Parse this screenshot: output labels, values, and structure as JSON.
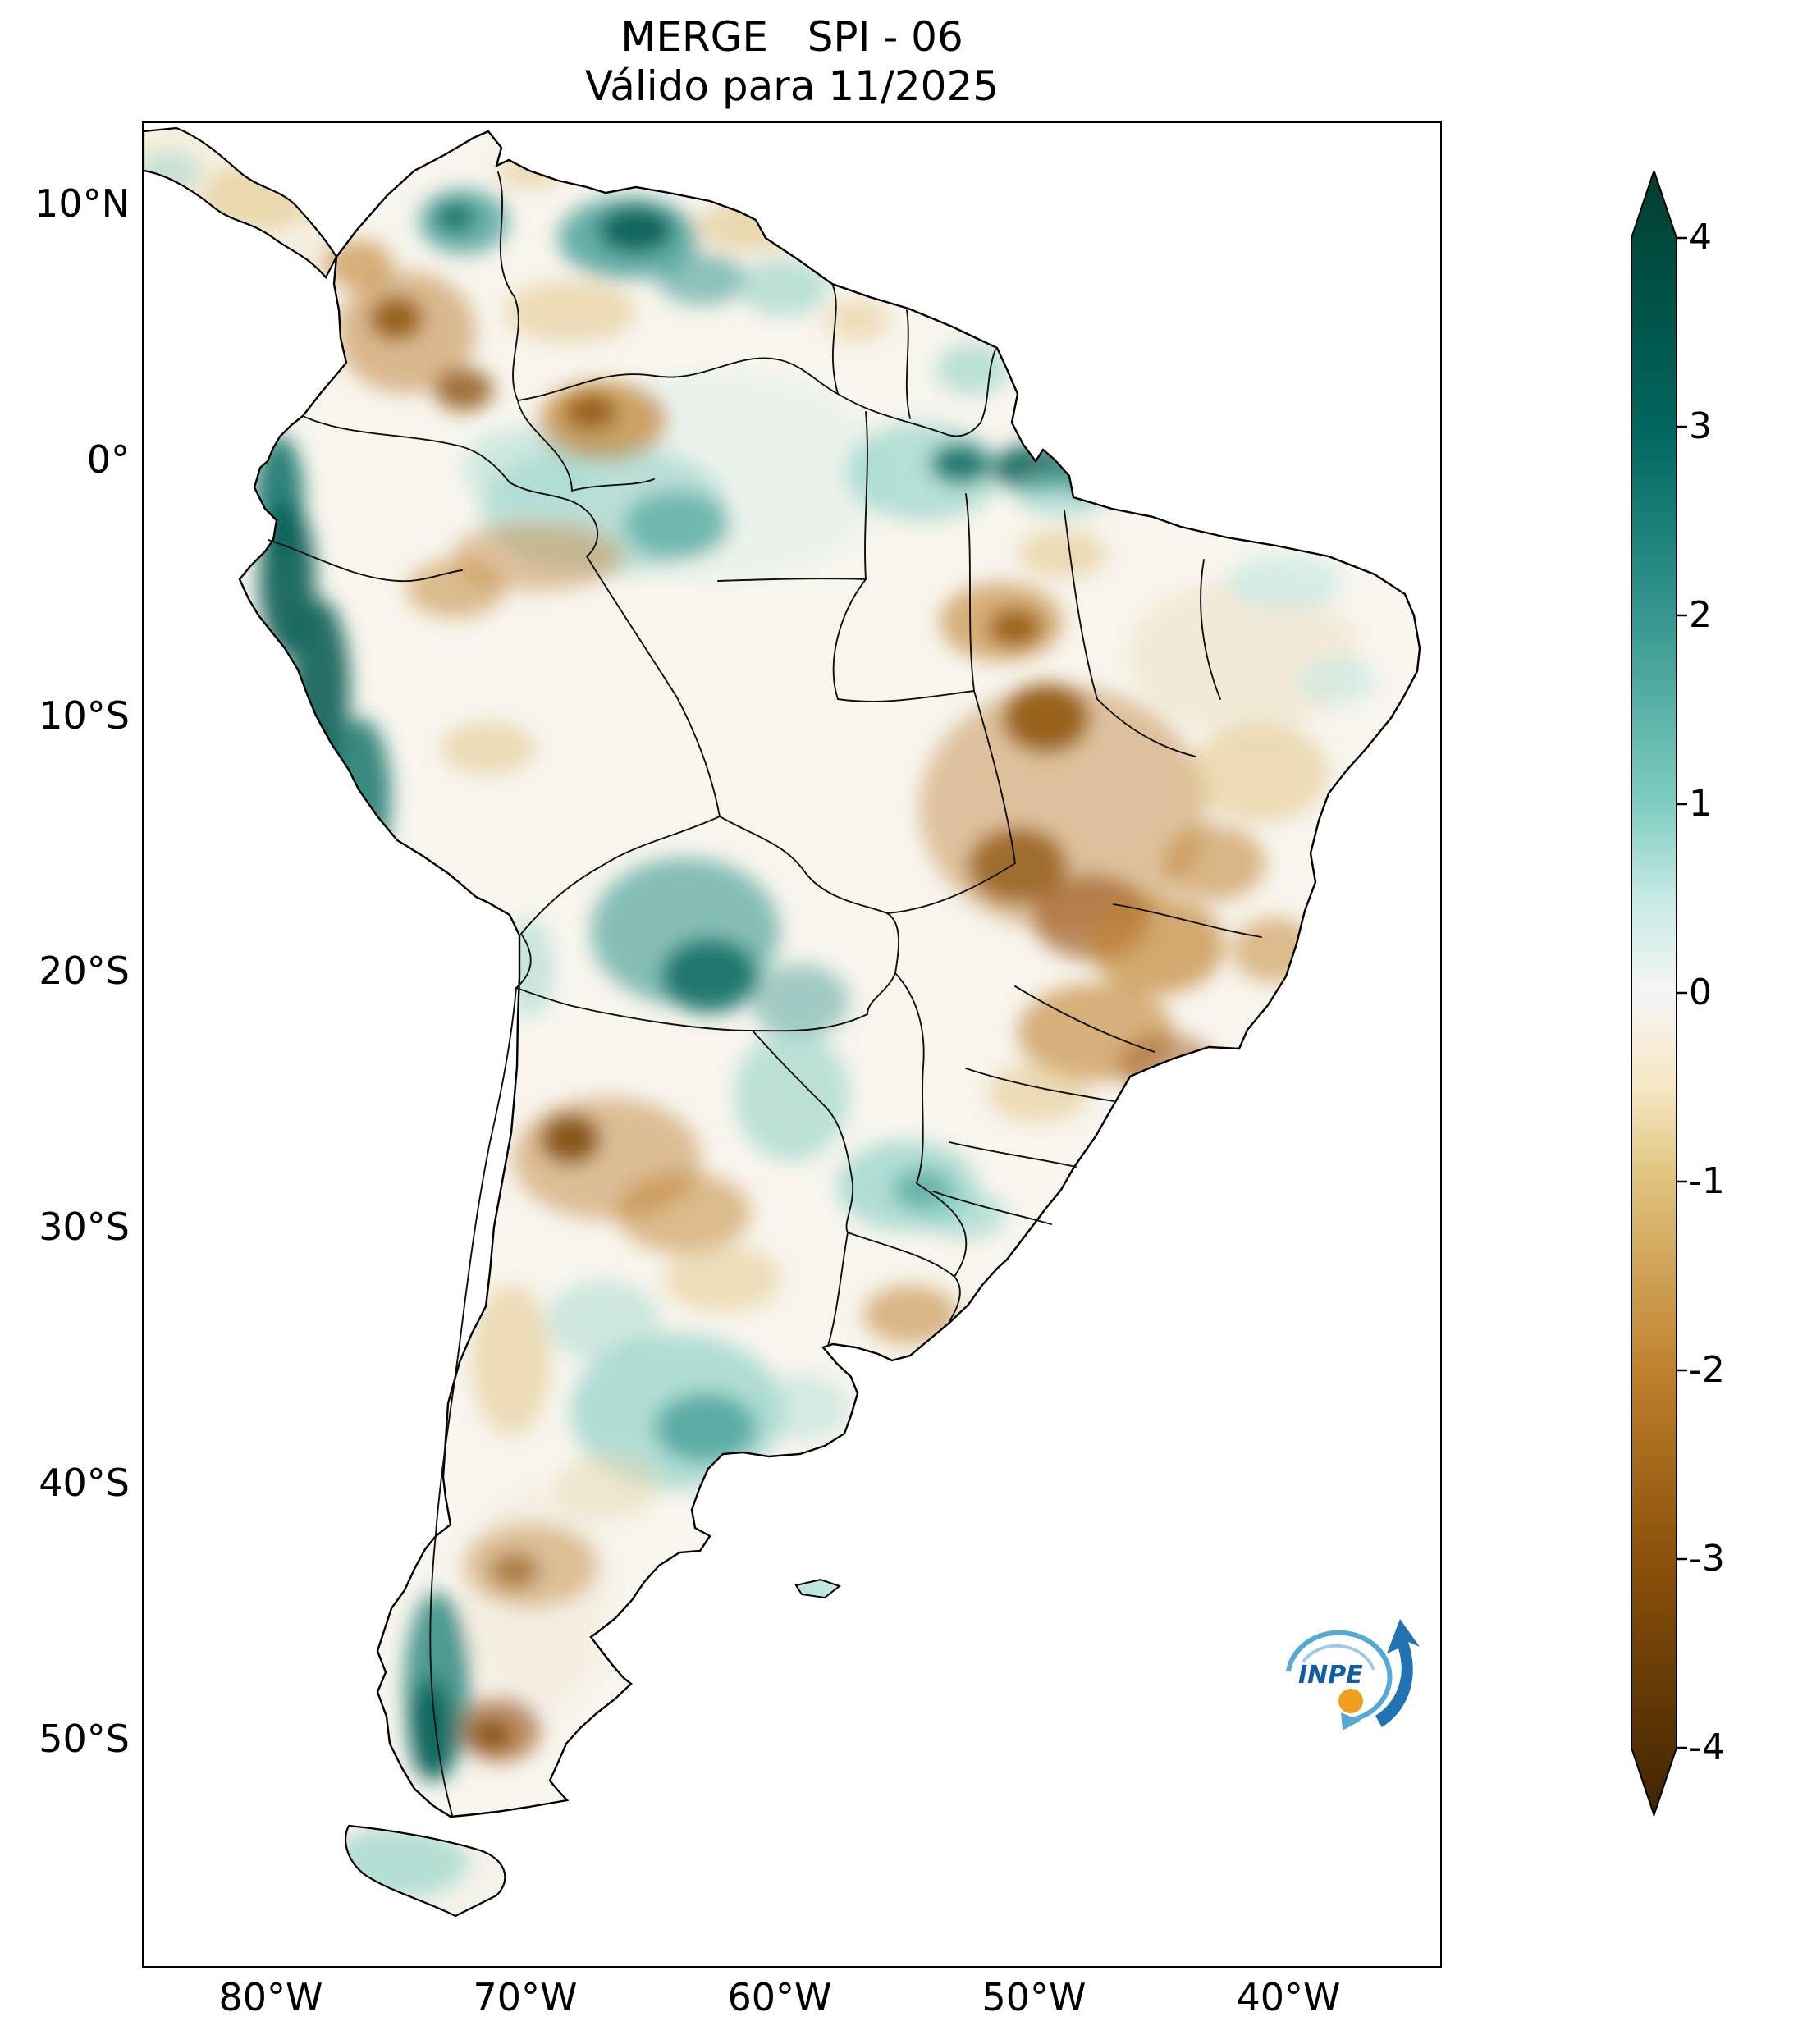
{
  "logo": {
    "text": "INPE"
  },
  "chart_data": {
    "type": "heatmap",
    "title": "MERGE   SPI - 06",
    "subtitle": "Válido para 11/2025",
    "x_tick_labels": [
      "80°W",
      "70°W",
      "60°W",
      "50°W",
      "40°W"
    ],
    "y_tick_labels": [
      "10°N",
      "0°",
      "10°S",
      "20°S",
      "30°S",
      "40°S",
      "50°S"
    ],
    "xlim": [
      "85°W",
      "34°W"
    ],
    "ylim": [
      "59°S",
      "13°N"
    ],
    "colorbar_tick_labels": [
      "4",
      "3",
      "2",
      "1",
      "0",
      "-1",
      "-2",
      "-3",
      "-4"
    ],
    "colorbar_range": [
      -4,
      4
    ],
    "colormap": "BrBG diverging: brown = dry (negative SPI), teal = wet (positive SPI)",
    "colormap_stops": [
      {
        "pos": "0%",
        "color": "#0a3a31"
      },
      {
        "pos": "4.1%",
        "color": "#00493c"
      },
      {
        "pos": "15.6%",
        "color": "#01665e"
      },
      {
        "pos": "27.1%",
        "color": "#35978f"
      },
      {
        "pos": "38.6%",
        "color": "#80cdc1"
      },
      {
        "pos": "44.3%",
        "color": "#c7eae5"
      },
      {
        "pos": "50%",
        "color": "#f5f5f5"
      },
      {
        "pos": "55.7%",
        "color": "#f6e8c3"
      },
      {
        "pos": "61.4%",
        "color": "#dfc27d"
      },
      {
        "pos": "72.9%",
        "color": "#bf812d"
      },
      {
        "pos": "84.4%",
        "color": "#8c510a"
      },
      {
        "pos": "95.9%",
        "color": "#543005"
      },
      {
        "pos": "100%",
        "color": "#3e2303"
      }
    ],
    "regions": [
      {
        "name": "amazon-faint-wet-tint",
        "spi": 0.5,
        "cx": 700,
        "cy": 430,
        "rx": 210,
        "ry": 130,
        "color": "#ddefe9",
        "opacity": 0.5
      },
      {
        "name": "ne-brazil-faint-dry-tint",
        "spi": -0.5,
        "cx": 1340,
        "cy": 650,
        "rx": 140,
        "ry": 95,
        "color": "#eee3c8",
        "opacity": 0.6
      },
      {
        "name": "patagonia-faint-dry-tint",
        "spi": -0.5,
        "cx": 480,
        "cy": 1800,
        "rx": 90,
        "ry": 140,
        "color": "#efe6cf",
        "opacity": 0.4
      },
      {
        "name": "panama-light-dry",
        "spi": -1,
        "cx": 140,
        "cy": 90,
        "rx": 70,
        "ry": 40,
        "color": "#dfc27d",
        "opacity": 0.5
      },
      {
        "name": "costa-rica-light-wet",
        "spi": 1,
        "cx": 30,
        "cy": 60,
        "rx": 40,
        "ry": 25,
        "color": "#80cdc1",
        "opacity": 0.4
      },
      {
        "name": "ecuador-coast-wet",
        "spi": 2.5,
        "cx": 165,
        "cy": 455,
        "rx": 30,
        "ry": 75,
        "color": "#15776d",
        "opacity": 0.9
      },
      {
        "name": "peru-north-coast-wet",
        "spi": 3.5,
        "cx": 175,
        "cy": 555,
        "rx": 34,
        "ry": 95,
        "color": "#0a6158",
        "opacity": 0.92
      },
      {
        "name": "peru-central-coast-wet",
        "spi": 3.5,
        "cx": 215,
        "cy": 690,
        "rx": 36,
        "ry": 110,
        "color": "#0a6158",
        "opacity": 0.9
      },
      {
        "name": "peru-south-coast-wet",
        "spi": 2.5,
        "cx": 265,
        "cy": 820,
        "rx": 36,
        "ry": 95,
        "color": "#15776d",
        "opacity": 0.85
      },
      {
        "name": "catatumbo-wet",
        "spi": 2,
        "cx": 390,
        "cy": 120,
        "rx": 55,
        "ry": 40,
        "color": "#35978f",
        "opacity": 0.7
      },
      {
        "name": "catatumbo-wet-core",
        "spi": 2.5,
        "cx": 380,
        "cy": 115,
        "rx": 24,
        "ry": 18,
        "color": "#0f6b61",
        "opacity": 0.85
      },
      {
        "name": "south-venezuela-wet",
        "spi": 2,
        "cx": 590,
        "cy": 140,
        "rx": 85,
        "ry": 50,
        "color": "#35978f",
        "opacity": 0.75
      },
      {
        "name": "south-venezuela-wet-core",
        "spi": 3.5,
        "cx": 600,
        "cy": 130,
        "rx": 45,
        "ry": 28,
        "color": "#045e55",
        "opacity": 0.9
      },
      {
        "name": "guayana-highlands-wet",
        "spi": 1.5,
        "cx": 680,
        "cy": 190,
        "rx": 55,
        "ry": 32,
        "color": "#35978f",
        "opacity": 0.55
      },
      {
        "name": "roraima-light-wet",
        "spi": 1,
        "cx": 780,
        "cy": 200,
        "rx": 55,
        "ry": 35,
        "color": "#80cdc1",
        "opacity": 0.5
      },
      {
        "name": "central-amazonas-wet",
        "spi": 1,
        "cx": 560,
        "cy": 470,
        "rx": 150,
        "ry": 80,
        "color": "#8fd0c5",
        "opacity": 0.55
      },
      {
        "name": "central-amazonas-wet-core",
        "spi": 2,
        "cx": 650,
        "cy": 490,
        "rx": 65,
        "ry": 42,
        "color": "#35978f",
        "opacity": 0.55
      },
      {
        "name": "west-amazon-light-wet",
        "spi": 1,
        "cx": 470,
        "cy": 420,
        "rx": 80,
        "ry": 50,
        "color": "#a8dcd2",
        "opacity": 0.5
      },
      {
        "name": "lower-amazon-wet",
        "spi": 1.5,
        "cx": 950,
        "cy": 425,
        "rx": 95,
        "ry": 60,
        "color": "#80cdc1",
        "opacity": 0.55
      },
      {
        "name": "lower-amazon-wet-core-1",
        "spi": 3,
        "cx": 995,
        "cy": 415,
        "rx": 36,
        "ry": 24,
        "color": "#01665e",
        "opacity": 0.85
      },
      {
        "name": "lower-amazon-wet-core-2",
        "spi": 3.5,
        "cx": 1085,
        "cy": 420,
        "rx": 52,
        "ry": 28,
        "color": "#045e55",
        "opacity": 0.85
      },
      {
        "name": "marajo-wet-core",
        "spi": 3,
        "cx": 1145,
        "cy": 432,
        "rx": 30,
        "ry": 20,
        "color": "#01665e",
        "opacity": 0.8
      },
      {
        "name": "west-maranhao-light-wet",
        "spi": 1,
        "cx": 1120,
        "cy": 450,
        "rx": 60,
        "ry": 30,
        "color": "#80cdc1",
        "opacity": 0.5
      },
      {
        "name": "amapa-wet",
        "spi": 1,
        "cx": 1010,
        "cy": 300,
        "rx": 45,
        "ry": 32,
        "color": "#80cdc1",
        "opacity": 0.5
      },
      {
        "name": "ceara-light-wet",
        "spi": 0.8,
        "cx": 1390,
        "cy": 560,
        "rx": 70,
        "ry": 34,
        "color": "#c7eae5",
        "opacity": 0.7
      },
      {
        "name": "pernambuco-light-wet",
        "spi": 0.8,
        "cx": 1455,
        "cy": 680,
        "rx": 48,
        "ry": 30,
        "color": "#c7eae5",
        "opacity": 0.6
      },
      {
        "name": "bolivia-beni-wet",
        "spi": 2,
        "cx": 660,
        "cy": 985,
        "rx": 115,
        "ry": 90,
        "color": "#35978f",
        "opacity": 0.6
      },
      {
        "name": "bolivia-wet-core",
        "spi": 3,
        "cx": 690,
        "cy": 1040,
        "rx": 58,
        "ry": 45,
        "color": "#01665e",
        "opacity": 0.8
      },
      {
        "name": "pantanal-wet",
        "spi": 1.5,
        "cx": 800,
        "cy": 1070,
        "rx": 60,
        "ry": 45,
        "color": "#35978f",
        "opacity": 0.45
      },
      {
        "name": "altiplano-wet",
        "spi": 1,
        "cx": 470,
        "cy": 1030,
        "rx": 30,
        "ry": 60,
        "color": "#80cdc1",
        "opacity": 0.4
      },
      {
        "name": "paraguay-wet",
        "spi": 1,
        "cx": 790,
        "cy": 1185,
        "rx": 70,
        "ry": 80,
        "color": "#80cdc1",
        "opacity": 0.5
      },
      {
        "name": "south-brazil-wet",
        "spi": 1.5,
        "cx": 930,
        "cy": 1295,
        "rx": 85,
        "ry": 55,
        "color": "#80cdc1",
        "opacity": 0.6
      },
      {
        "name": "misiones-wet-core",
        "spi": 2,
        "cx": 950,
        "cy": 1300,
        "rx": 36,
        "ry": 25,
        "color": "#35978f",
        "opacity": 0.6
      },
      {
        "name": "rio-grande-do-sul-wet",
        "spi": 1,
        "cx": 1000,
        "cy": 1330,
        "rx": 50,
        "ry": 30,
        "color": "#80cdc1",
        "opacity": 0.5
      },
      {
        "name": "central-argentina-wet",
        "spi": 1.5,
        "cx": 650,
        "cy": 1570,
        "rx": 130,
        "ry": 95,
        "color": "#80cdc1",
        "opacity": 0.6
      },
      {
        "name": "la-pampa-wet-core",
        "spi": 2,
        "cx": 685,
        "cy": 1590,
        "rx": 62,
        "ry": 42,
        "color": "#35978f",
        "opacity": 0.68
      },
      {
        "name": "cordoba-light-wet",
        "spi": 1,
        "cx": 560,
        "cy": 1460,
        "rx": 70,
        "ry": 50,
        "color": "#9cd6cb",
        "opacity": 0.45
      },
      {
        "name": "buenos-aires-light-wet",
        "spi": 1,
        "cx": 800,
        "cy": 1565,
        "rx": 60,
        "ry": 40,
        "color": "#a8dcd2",
        "opacity": 0.45
      },
      {
        "name": "south-chile-wet",
        "spi": 2.5,
        "cx": 358,
        "cy": 1905,
        "rx": 40,
        "ry": 115,
        "color": "#2d8a80",
        "opacity": 0.85
      },
      {
        "name": "south-chile-wet-core",
        "spi": 3,
        "cx": 350,
        "cy": 1958,
        "rx": 26,
        "ry": 62,
        "color": "#0a6158",
        "opacity": 0.85
      },
      {
        "name": "tierra-del-fuego-wet",
        "spi": 1,
        "cx": 310,
        "cy": 2120,
        "rx": 85,
        "ry": 42,
        "color": "#80cdc1",
        "opacity": 0.55
      },
      {
        "name": "colombia-andes-dry",
        "spi": -1.5,
        "cx": 320,
        "cy": 255,
        "rx": 85,
        "ry": 75,
        "color": "#c9985a",
        "opacity": 0.65
      },
      {
        "name": "colombia-dry-core-1",
        "spi": -3,
        "cx": 308,
        "cy": 238,
        "rx": 32,
        "ry": 26,
        "color": "#8c510a",
        "opacity": 0.85
      },
      {
        "name": "colombia-dry-core-2",
        "spi": -3,
        "cx": 390,
        "cy": 325,
        "rx": 36,
        "ry": 26,
        "color": "#8c510a",
        "opacity": 0.8
      },
      {
        "name": "caribbean-coast-dry",
        "spi": -2,
        "cx": 262,
        "cy": 172,
        "rx": 42,
        "ry": 30,
        "color": "#bf812d",
        "opacity": 0.6
      },
      {
        "name": "venezuela-llanos-dry",
        "spi": -1,
        "cx": 520,
        "cy": 230,
        "rx": 80,
        "ry": 38,
        "color": "#dfc27d",
        "opacity": 0.5
      },
      {
        "name": "venezuela-coast-dry",
        "spi": -1,
        "cx": 470,
        "cy": 60,
        "rx": 40,
        "ry": 20,
        "color": "#dfc27d",
        "opacity": 0.5
      },
      {
        "name": "guyana-coast-dry",
        "spi": -1,
        "cx": 740,
        "cy": 125,
        "rx": 65,
        "ry": 32,
        "color": "#dfc27d",
        "opacity": 0.55
      },
      {
        "name": "orinoco-delta-dry",
        "spi": -2,
        "cx": 810,
        "cy": 98,
        "rx": 40,
        "ry": 26,
        "color": "#bf812d",
        "opacity": 0.5
      },
      {
        "name": "suriname-light-dry",
        "spi": -1,
        "cx": 870,
        "cy": 240,
        "rx": 40,
        "ry": 26,
        "color": "#dfc27d",
        "opacity": 0.45
      },
      {
        "name": "rio-negro-dry",
        "spi": -2,
        "cx": 560,
        "cy": 362,
        "rx": 78,
        "ry": 48,
        "color": "#bf812d",
        "opacity": 0.7
      },
      {
        "name": "rio-negro-dry-core",
        "spi": -3,
        "cx": 545,
        "cy": 352,
        "rx": 32,
        "ry": 22,
        "color": "#8c510a",
        "opacity": 0.8
      },
      {
        "name": "south-amazonas-dry",
        "spi": -1.5,
        "cx": 480,
        "cy": 528,
        "rx": 105,
        "ry": 42,
        "color": "#c9985a",
        "opacity": 0.55
      },
      {
        "name": "jurua-dry",
        "spi": -2,
        "cx": 380,
        "cy": 568,
        "rx": 60,
        "ry": 35,
        "color": "#bf812d",
        "opacity": 0.5
      },
      {
        "name": "acre-light-dry",
        "spi": -1,
        "cx": 420,
        "cy": 762,
        "rx": 58,
        "ry": 32,
        "color": "#dfc27d",
        "opacity": 0.5
      },
      {
        "name": "maranhao-dry",
        "spi": -2,
        "cx": 1045,
        "cy": 608,
        "rx": 75,
        "ry": 48,
        "color": "#bf812d",
        "opacity": 0.6
      },
      {
        "name": "maranhao-dry-core",
        "spi": -3,
        "cx": 1062,
        "cy": 615,
        "rx": 32,
        "ry": 22,
        "color": "#8c510a",
        "opacity": 0.8
      },
      {
        "name": "east-para-light-dry",
        "spi": -1,
        "cx": 1120,
        "cy": 525,
        "rx": 55,
        "ry": 30,
        "color": "#dfc27d",
        "opacity": 0.5
      },
      {
        "name": "central-brazil-dry",
        "spi": -2,
        "cx": 1120,
        "cy": 835,
        "rx": 175,
        "ry": 150,
        "color": "#c9985a",
        "opacity": 0.55
      },
      {
        "name": "tocantins-dry-core",
        "spi": -3.5,
        "cx": 1100,
        "cy": 725,
        "rx": 52,
        "ry": 42,
        "color": "#8c510a",
        "opacity": 0.85
      },
      {
        "name": "goias-dry-core",
        "spi": -3,
        "cx": 1065,
        "cy": 905,
        "rx": 60,
        "ry": 46,
        "color": "#8c510a",
        "opacity": 0.75
      },
      {
        "name": "minas-dry-core",
        "spi": -3,
        "cx": 1155,
        "cy": 968,
        "rx": 72,
        "ry": 52,
        "color": "#a3622b",
        "opacity": 0.7
      },
      {
        "name": "west-bahia-dry",
        "spi": -2,
        "cx": 1235,
        "cy": 1002,
        "rx": 82,
        "ry": 60,
        "color": "#bf812d",
        "opacity": 0.65
      },
      {
        "name": "bahia-dry",
        "spi": -2,
        "cx": 1305,
        "cy": 902,
        "rx": 62,
        "ry": 46,
        "color": "#bf812d",
        "opacity": 0.55
      },
      {
        "name": "ne-interior-light-dry",
        "spi": -1,
        "cx": 1360,
        "cy": 792,
        "rx": 85,
        "ry": 60,
        "color": "#dfc27d",
        "opacity": 0.5
      },
      {
        "name": "espirito-santo-dry",
        "spi": -1.5,
        "cx": 1378,
        "cy": 1008,
        "rx": 52,
        "ry": 40,
        "color": "#bf812d",
        "opacity": 0.5
      },
      {
        "name": "minas-sp-dry",
        "spi": -2,
        "cx": 1160,
        "cy": 1108,
        "rx": 95,
        "ry": 60,
        "color": "#bf812d",
        "opacity": 0.6
      },
      {
        "name": "rio-de-janeiro-dry",
        "spi": -1.5,
        "cx": 1248,
        "cy": 1148,
        "rx": 60,
        "ry": 38,
        "color": "#a3622b",
        "opacity": 0.55
      },
      {
        "name": "sao-paulo-light-dry",
        "spi": -1,
        "cx": 1090,
        "cy": 1182,
        "rx": 62,
        "ry": 36,
        "color": "#dfc27d",
        "opacity": 0.5
      },
      {
        "name": "north-argentina-dry",
        "spi": -1.5,
        "cx": 565,
        "cy": 1262,
        "rx": 115,
        "ry": 75,
        "color": "#c9985a",
        "opacity": 0.6
      },
      {
        "name": "salta-dry-core",
        "spi": -3.5,
        "cx": 520,
        "cy": 1238,
        "rx": 36,
        "ry": 30,
        "color": "#7a4709",
        "opacity": 0.85
      },
      {
        "name": "chaco-dry",
        "spi": -2,
        "cx": 658,
        "cy": 1328,
        "rx": 82,
        "ry": 50,
        "color": "#bf812d",
        "opacity": 0.5
      },
      {
        "name": "santiago-del-estero-dry",
        "spi": -1,
        "cx": 705,
        "cy": 1408,
        "rx": 72,
        "ry": 42,
        "color": "#dfc27d",
        "opacity": 0.45
      },
      {
        "name": "uruguay-dry",
        "spi": -2,
        "cx": 935,
        "cy": 1452,
        "rx": 58,
        "ry": 36,
        "color": "#bf812d",
        "opacity": 0.55
      },
      {
        "name": "cuyo-light-dry",
        "spi": -1,
        "cx": 448,
        "cy": 1508,
        "rx": 48,
        "ry": 92,
        "color": "#dfc27d",
        "opacity": 0.5
      },
      {
        "name": "west-pampa-light-dry",
        "spi": -0.8,
        "cx": 565,
        "cy": 1662,
        "rx": 62,
        "ry": 40,
        "color": "#e7d7ae",
        "opacity": 0.5
      },
      {
        "name": "ne-patagonia-dry",
        "spi": -1.5,
        "cx": 472,
        "cy": 1758,
        "rx": 82,
        "ry": 52,
        "color": "#c9985a",
        "opacity": 0.55
      },
      {
        "name": "chubut-dry-core",
        "spi": -2.5,
        "cx": 452,
        "cy": 1764,
        "rx": 30,
        "ry": 22,
        "color": "#8c510a",
        "opacity": 0.6
      },
      {
        "name": "santa-cruz-dry",
        "spi": -2.5,
        "cx": 434,
        "cy": 1958,
        "rx": 50,
        "ry": 40,
        "color": "#a3622b",
        "opacity": 0.7
      },
      {
        "name": "santa-cruz-dry-core",
        "spi": -3.5,
        "cx": 424,
        "cy": 1965,
        "rx": 24,
        "ry": 18,
        "color": "#7a4709",
        "opacity": 0.8
      }
    ]
  }
}
